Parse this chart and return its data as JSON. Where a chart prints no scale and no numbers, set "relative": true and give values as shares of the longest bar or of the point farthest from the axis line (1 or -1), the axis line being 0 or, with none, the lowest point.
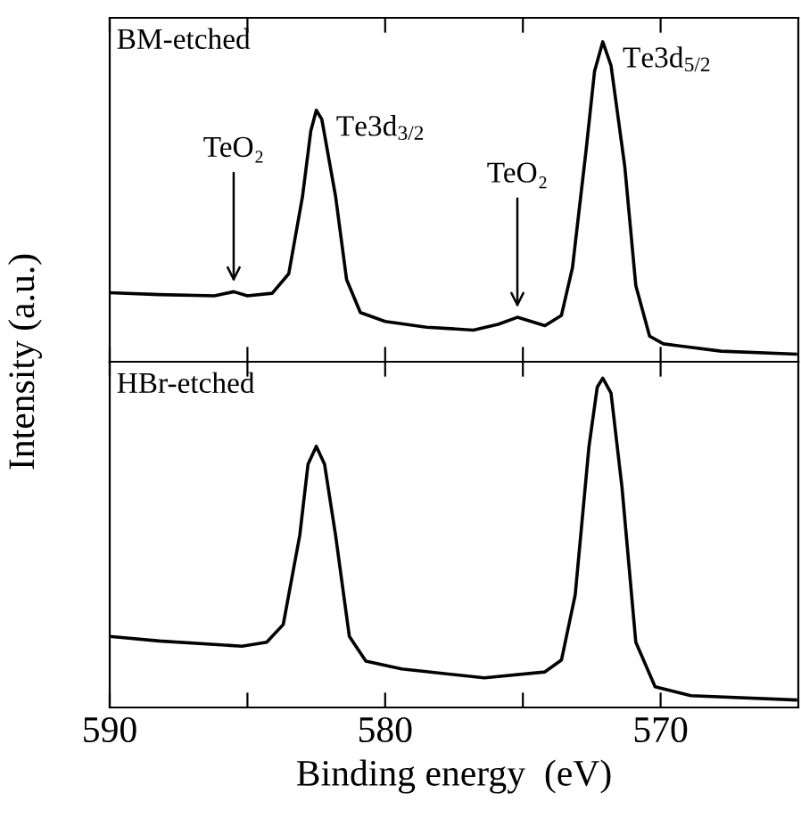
{
  "chart_data": [
    {
      "type": "line",
      "relative": true,
      "ylabel": "Intensity (a.u.)",
      "xlim": [
        590,
        565
      ],
      "xticks": [
        {
          "value": 590,
          "label": null
        },
        {
          "value": 585,
          "label": null
        },
        {
          "value": 580,
          "label": null
        },
        {
          "value": 575,
          "label": null
        },
        {
          "value": 570,
          "label": null
        }
      ],
      "tick_labels": false,
      "series": [
        {
          "name": "BM-etched",
          "color": "#000000",
          "x": [
            590,
            588.2,
            586.2,
            585.5,
            585.0,
            584.1,
            583.5,
            583.0,
            582.7,
            582.5,
            582.3,
            581.8,
            581.4,
            580.9,
            580.0,
            578.5,
            576.8,
            575.9,
            575.2,
            574.7,
            574.2,
            573.6,
            573.2,
            572.7,
            572.4,
            572.1,
            571.8,
            571.3,
            570.9,
            570.4,
            569.9,
            567.8,
            565.1
          ],
          "values": [
            0.216,
            0.21,
            0.206,
            0.219,
            0.206,
            0.214,
            0.275,
            0.517,
            0.721,
            0.786,
            0.758,
            0.517,
            0.257,
            0.154,
            0.126,
            0.108,
            0.099,
            0.117,
            0.139,
            0.126,
            0.113,
            0.145,
            0.294,
            0.665,
            0.907,
            1.0,
            0.926,
            0.61,
            0.238,
            0.08,
            0.056,
            0.033,
            0.024
          ]
        }
      ],
      "annotations": [
        {
          "text": "Te3d$_{3/2}$",
          "x": 582.5,
          "y": 0.786
        },
        {
          "text": "Te3d$_{5/2}$",
          "x": 572.1,
          "y": 1.0
        },
        {
          "text": "TeO₂",
          "x": 585.5,
          "y": 0.219
        },
        {
          "text": "TeO₂",
          "x": 575.2,
          "y": 0.139
        }
      ]
    },
    {
      "type": "line",
      "relative": true,
      "xlabel": "Binding energy  (eV)",
      "xlim": [
        590,
        565
      ],
      "xticks": [
        590,
        {
          "value": 585,
          "label": null
        },
        580,
        {
          "value": 575,
          "label": null
        },
        570
      ],
      "tick_labels": "x",
      "series": [
        {
          "name": "HBr-etched",
          "color": "#000000",
          "x": [
            590,
            588.2,
            585.2,
            584.3,
            583.7,
            583.1,
            582.8,
            582.5,
            582.2,
            581.8,
            581.3,
            580.7,
            579.4,
            576.4,
            574.2,
            573.6,
            573.1,
            572.6,
            572.3,
            572.1,
            571.8,
            571.4,
            570.9,
            570.2,
            568.9,
            565.1
          ],
          "values": [
            0.216,
            0.202,
            0.186,
            0.198,
            0.252,
            0.523,
            0.739,
            0.793,
            0.739,
            0.523,
            0.216,
            0.141,
            0.117,
            0.09,
            0.108,
            0.144,
            0.342,
            0.793,
            0.973,
            1.0,
            0.955,
            0.667,
            0.198,
            0.063,
            0.036,
            0.023
          ]
        }
      ]
    }
  ]
}
